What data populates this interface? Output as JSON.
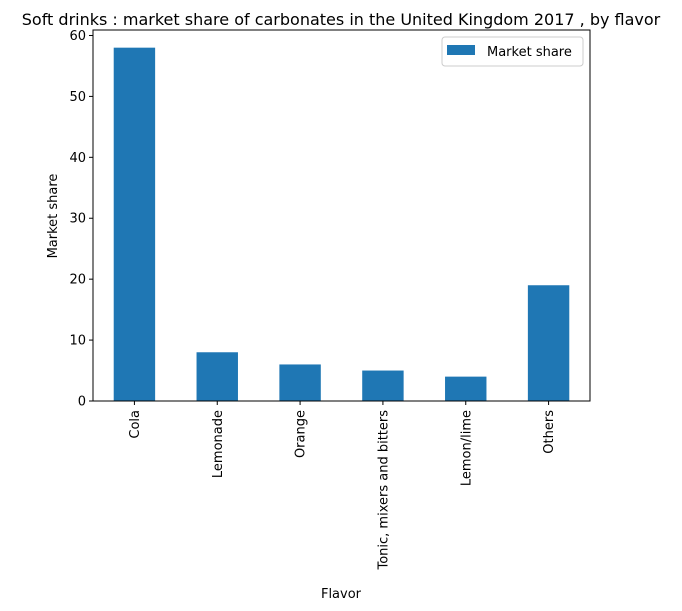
{
  "chart_data": {
    "type": "bar",
    "title": "Soft drinks : market share of carbonates in the United Kingdom 2017 , by flavor",
    "xlabel": "Flavor",
    "ylabel": "Market share",
    "categories": [
      "Cola",
      "Lemonade",
      "Orange",
      "Tonic, mixers and bitters",
      "Lemon/lime",
      "Others"
    ],
    "series": [
      {
        "name": "Market share",
        "values": [
          58,
          8,
          6,
          5,
          4,
          19
        ],
        "color": "#1f77b4"
      }
    ],
    "ylim": [
      0,
      60.9
    ],
    "yticks": [
      "0",
      "10",
      "20",
      "30",
      "40",
      "50",
      "60"
    ],
    "grid": false,
    "legend": "top-right"
  }
}
